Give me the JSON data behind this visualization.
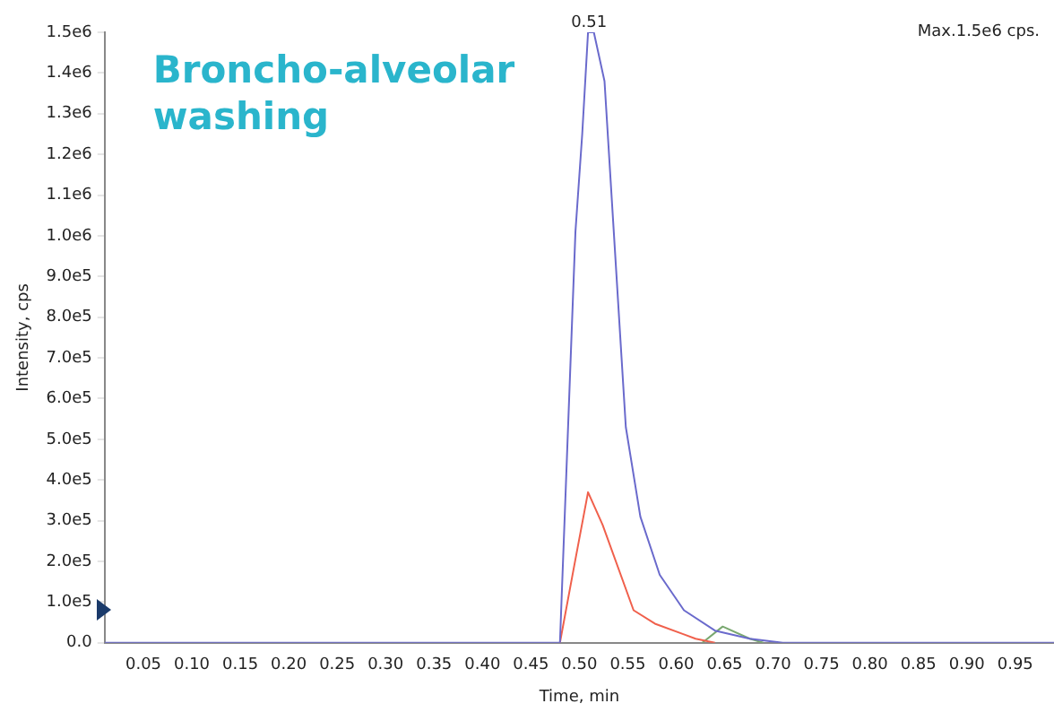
{
  "chart_data": {
    "type": "line",
    "title": "Broncho-alveolar washing",
    "xlabel": "Time, min",
    "ylabel": "Intensity, cps",
    "annotations": [
      {
        "text": "0.51",
        "x": 0.51,
        "y": 1500000
      },
      "Max.1.5e6 cps."
    ],
    "xlim": [
      0.01,
      0.99
    ],
    "xticks": [
      {
        "value": 0.05,
        "label": "0.05"
      },
      {
        "value": 0.1,
        "label": "0.10"
      },
      {
        "value": 0.15,
        "label": "0.15"
      },
      {
        "value": 0.2,
        "label": "0.20"
      },
      {
        "value": 0.25,
        "label": "0.25"
      },
      {
        "value": 0.3,
        "label": "0.30"
      },
      {
        "value": 0.35,
        "label": "0.35"
      },
      {
        "value": 0.4,
        "label": "0.40"
      },
      {
        "value": 0.45,
        "label": "0.45"
      },
      {
        "value": 0.5,
        "label": "0.50"
      },
      {
        "value": 0.55,
        "label": "0.55"
      },
      {
        "value": 0.6,
        "label": "0.60"
      },
      {
        "value": 0.65,
        "label": "0.65"
      },
      {
        "value": 0.7,
        "label": "0.70"
      },
      {
        "value": 0.75,
        "label": "0.75"
      },
      {
        "value": 0.8,
        "label": "0.80"
      },
      {
        "value": 0.85,
        "label": "0.85"
      },
      {
        "value": 0.9,
        "label": "0.90"
      },
      {
        "value": 0.95,
        "label": "0.95"
      }
    ],
    "ylim": [
      0,
      1500000
    ],
    "yticks": [
      {
        "value": 0,
        "label": "0.0"
      },
      {
        "value": 100000,
        "label": "1.0e5"
      },
      {
        "value": 200000,
        "label": "2.0e5"
      },
      {
        "value": 300000,
        "label": "3.0e5"
      },
      {
        "value": 400000,
        "label": "4.0e5"
      },
      {
        "value": 500000,
        "label": "5.0e5"
      },
      {
        "value": 600000,
        "label": "6.0e5"
      },
      {
        "value": 700000,
        "label": "7.0e5"
      },
      {
        "value": 800000,
        "label": "8.0e5"
      },
      {
        "value": 900000,
        "label": "9.0e5"
      },
      {
        "value": 1000000,
        "label": "1.0e6"
      },
      {
        "value": 1100000,
        "label": "1.1e6"
      },
      {
        "value": 1200000,
        "label": "1.2e6"
      },
      {
        "value": 1300000,
        "label": "1.3e6"
      },
      {
        "value": 1400000,
        "label": "1.4e6"
      },
      {
        "value": 1500000,
        "label": "1.5e6"
      }
    ],
    "grid": false,
    "legend": false,
    "marker": "none",
    "line_style": "solid",
    "series": [
      {
        "color": "#6a6acc",
        "x": [
          0.01,
          0.48,
          0.496,
          0.503,
          0.509,
          0.515,
          0.526,
          0.548,
          0.563,
          0.583,
          0.608,
          0.64,
          0.676,
          0.71,
          0.99
        ],
        "values": [
          0,
          0,
          1010000,
          1250000,
          1500000,
          1500000,
          1380000,
          530000,
          310000,
          167000,
          80000,
          30000,
          10000,
          0,
          0
        ]
      },
      {
        "color": "#f0604c",
        "x": [
          0.48,
          0.494,
          0.509,
          0.524,
          0.556,
          0.578,
          0.62,
          0.64
        ],
        "values": [
          0,
          180000,
          370000,
          290000,
          80000,
          47000,
          10000,
          0
        ]
      },
      {
        "color": "#7aa870",
        "x": [
          0.627,
          0.648,
          0.676,
          0.69
        ],
        "values": [
          0,
          40000,
          10000,
          0
        ]
      }
    ]
  }
}
